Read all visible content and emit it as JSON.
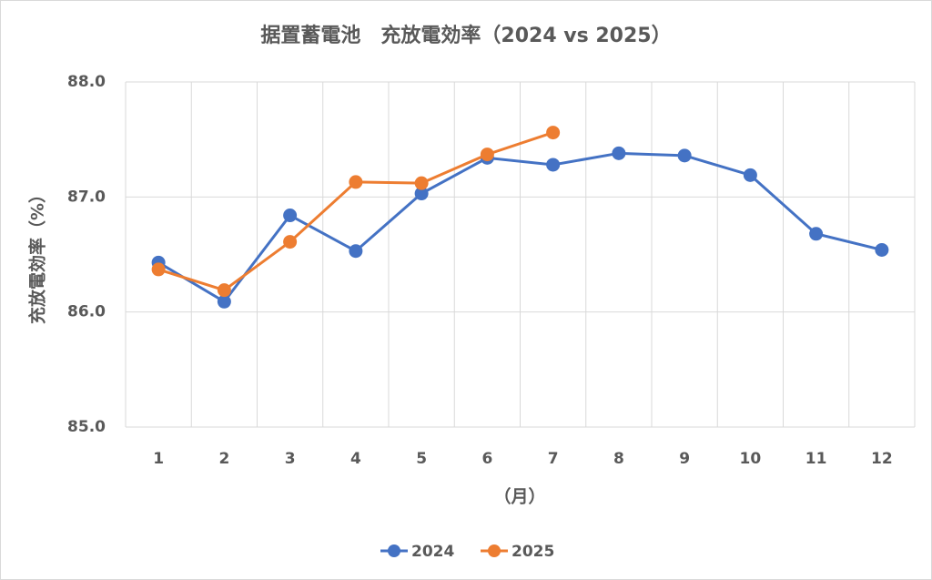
{
  "chart_data": {
    "type": "line",
    "title": "据置蓄電池　充放電効率（2024 vs 2025）",
    "y_label": "充放電効率（%）",
    "x_label": "（月）",
    "categories": [
      "1",
      "2",
      "3",
      "4",
      "5",
      "6",
      "7",
      "8",
      "9",
      "10",
      "11",
      "12"
    ],
    "series": [
      {
        "name": "2024",
        "color": "#4472c4",
        "values": [
          86.43,
          86.09,
          86.84,
          86.53,
          87.03,
          87.34,
          87.28,
          87.38,
          87.36,
          87.19,
          86.68,
          86.54
        ]
      },
      {
        "name": "2025",
        "color": "#ed7d31",
        "values": [
          86.37,
          86.19,
          86.61,
          87.13,
          87.12,
          87.37,
          87.56,
          null,
          null,
          null,
          null,
          null
        ]
      }
    ],
    "ylim": [
      85,
      88
    ],
    "yticks": [
      {
        "value": 85,
        "label": "85.0"
      },
      {
        "value": 86,
        "label": "86.0"
      },
      {
        "value": 87,
        "label": "87.0"
      },
      {
        "value": 88,
        "label": "88.0"
      }
    ],
    "grid": true,
    "legend": "bottom"
  }
}
